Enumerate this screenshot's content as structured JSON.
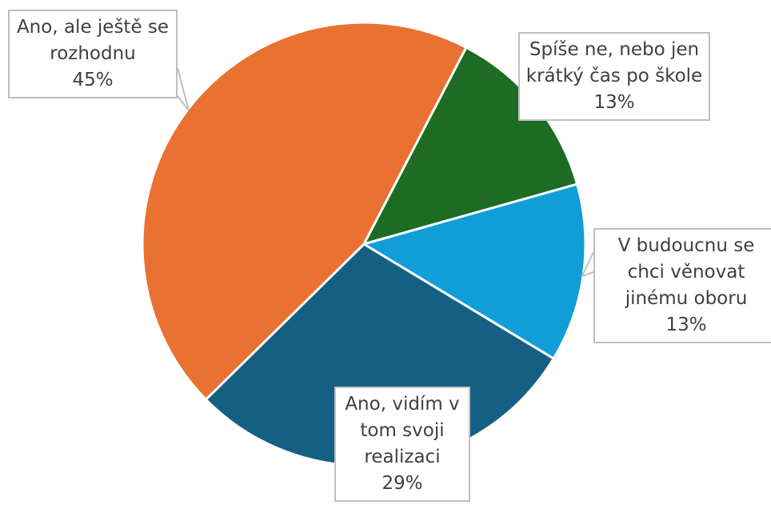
{
  "chart_data": {
    "type": "pie",
    "categories": [
      "Spíše ne, nebo jen krátký čas po škole",
      "V budoucnu se chci věnovat jinému oboru",
      "Ano, vidím v tom svoji realizaci",
      "Ano, ale ještě se rozhodnu"
    ],
    "values": [
      13,
      13,
      29,
      45
    ],
    "value_labels": [
      "13%",
      "13%",
      "29%",
      "45%"
    ],
    "colors": [
      "#1e6b24",
      "#119ed8",
      "#155f82",
      "#e97132"
    ]
  }
}
